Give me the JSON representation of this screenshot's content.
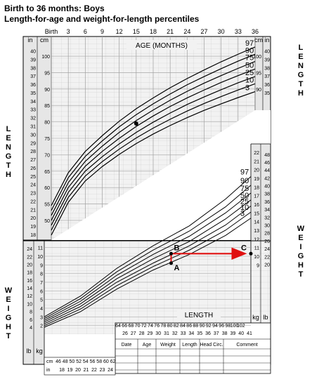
{
  "titles": {
    "line1": "Birth to 36 months: Boys",
    "line2": "Length-for-age and weight-for-length percentiles"
  },
  "side_labels": {
    "left_length": "LENGTH",
    "left_weight": "WEIGHT",
    "right_length": "LENGTH",
    "right_weight": "WEIGHT"
  },
  "colors": {
    "arrow": "#e01010",
    "curve": "#000000",
    "grid": "#bdbdbd",
    "panel": "#e6e6e6"
  },
  "chart_data": [
    {
      "type": "line",
      "title": "Length-for-age",
      "xlabel": "AGE (MONTHS)",
      "ylabel": "LENGTH",
      "x_ticks": [
        "Birth",
        "3",
        "6",
        "9",
        "12",
        "15",
        "18",
        "21",
        "24",
        "27",
        "30",
        "33",
        "36"
      ],
      "xlim": [
        0,
        36
      ],
      "ylim_cm": [
        44,
        106
      ],
      "y_ticks_in": [
        18,
        19,
        20,
        21,
        22,
        23,
        24,
        25,
        26,
        27,
        28,
        29,
        30,
        31,
        32,
        33,
        34,
        35,
        36,
        37,
        38,
        39,
        40,
        41
      ],
      "y_ticks_in_right": [
        35,
        36,
        37,
        38,
        39,
        40,
        41
      ],
      "y_ticks_cm": [
        50,
        55,
        60,
        65,
        70,
        75,
        80,
        85,
        90,
        95,
        100
      ],
      "y_ticks_cm_right": [
        90,
        95,
        100
      ],
      "unit_in": "in",
      "unit_cm": "cm",
      "x": [
        0,
        3,
        6,
        9,
        12,
        15,
        18,
        21,
        24,
        27,
        30,
        33,
        36
      ],
      "series": [
        {
          "name": "97",
          "values": [
            54.5,
            64.5,
            71.0,
            75.8,
            80.2,
            84.0,
            87.3,
            90.4,
            93.2,
            95.8,
            98.3,
            100.6,
            102.8
          ]
        },
        {
          "name": "90",
          "values": [
            53.0,
            63.0,
            69.5,
            74.2,
            78.5,
            82.2,
            85.5,
            88.5,
            91.3,
            93.8,
            96.2,
            98.5,
            100.6
          ]
        },
        {
          "name": "75",
          "values": [
            51.5,
            61.5,
            68.0,
            72.6,
            76.8,
            80.4,
            83.6,
            86.6,
            89.3,
            91.8,
            94.1,
            96.3,
            98.4
          ]
        },
        {
          "name": "50",
          "values": [
            50.0,
            60.0,
            66.5,
            71.0,
            75.0,
            78.6,
            81.8,
            84.7,
            87.3,
            89.7,
            92.0,
            94.1,
            96.1
          ]
        },
        {
          "name": "25",
          "values": [
            48.5,
            58.5,
            65.0,
            69.4,
            73.3,
            76.8,
            79.9,
            82.7,
            85.3,
            87.6,
            89.8,
            91.9,
            93.8
          ]
        },
        {
          "name": "10",
          "values": [
            47.0,
            57.0,
            63.5,
            67.9,
            71.7,
            75.1,
            78.1,
            80.8,
            83.3,
            85.6,
            87.7,
            89.7,
            91.6
          ]
        },
        {
          "name": "3",
          "values": [
            45.5,
            55.5,
            62.0,
            66.4,
            70.1,
            73.4,
            76.3,
            78.9,
            81.3,
            83.5,
            85.5,
            87.4,
            89.2
          ]
        }
      ],
      "marked_point": {
        "x": 15,
        "y": 79.5
      }
    },
    {
      "type": "line",
      "title": "Weight-for-length",
      "xlabel": "LENGTH",
      "xlim_cm": [
        45,
        102
      ],
      "ylim_kg": [
        1,
        25
      ],
      "x_ticks_cm_bottom": [
        46,
        48,
        50,
        52,
        54,
        56,
        58,
        60,
        62
      ],
      "x_ticks_in_bottom": [
        18,
        19,
        20,
        21,
        22,
        23,
        24
      ],
      "x_ticks_cm_top": [
        64,
        66,
        68,
        70,
        72,
        74,
        76,
        78,
        80,
        82,
        84,
        86,
        88,
        90,
        92,
        94,
        96,
        98,
        100,
        102
      ],
      "x_ticks_in_top": [
        26,
        27,
        28,
        29,
        30,
        31,
        32,
        33,
        34,
        35,
        36,
        37,
        38,
        39,
        40,
        41
      ],
      "y_ticks_kg_left": [
        2,
        3,
        4,
        5,
        6,
        7,
        8,
        9,
        10,
        11
      ],
      "y_ticks_lb_left": [
        4,
        6,
        8,
        10,
        12,
        14,
        16,
        18,
        20,
        22,
        24
      ],
      "y_ticks_kg_right": [
        9,
        10,
        11,
        12,
        13,
        14,
        15,
        16,
        17,
        18,
        19,
        20,
        21,
        22
      ],
      "y_ticks_lb_right": [
        20,
        22,
        24,
        26,
        28,
        30,
        32,
        34,
        36,
        38,
        40,
        42,
        44,
        46,
        48
      ],
      "unit_kg": "kg",
      "unit_lb": "lb",
      "x": [
        45,
        55,
        65,
        75,
        85,
        95,
        102
      ],
      "series": [
        {
          "name": "97",
          "values": [
            3.0,
            5.4,
            8.6,
            11.2,
            13.5,
            16.6,
            19.2
          ]
        },
        {
          "name": "90",
          "values": [
            2.8,
            5.1,
            8.2,
            10.7,
            12.9,
            15.7,
            18.2
          ]
        },
        {
          "name": "75",
          "values": [
            2.6,
            4.8,
            7.8,
            10.2,
            12.3,
            15.0,
            17.3
          ]
        },
        {
          "name": "50",
          "values": [
            2.4,
            4.5,
            7.4,
            9.7,
            11.7,
            14.3,
            16.5
          ]
        },
        {
          "name": "25",
          "values": [
            2.2,
            4.2,
            7.0,
            9.2,
            11.2,
            13.6,
            15.8
          ]
        },
        {
          "name": "10",
          "values": [
            2.0,
            3.9,
            6.6,
            8.8,
            10.7,
            13.0,
            15.1
          ]
        },
        {
          "name": "3",
          "values": [
            1.8,
            3.6,
            6.2,
            8.4,
            10.2,
            12.4,
            14.4
          ]
        }
      ],
      "annotations": [
        {
          "label": "A",
          "x": 80,
          "y": 9.2
        },
        {
          "label": "B",
          "x": 80,
          "y": 10.3
        },
        {
          "label": "C",
          "x": 102,
          "y": 10.3
        }
      ]
    }
  ],
  "record_table": {
    "headers": [
      "Date",
      "Age",
      "Weight",
      "Length",
      "Head Circ.",
      "Comment"
    ]
  }
}
